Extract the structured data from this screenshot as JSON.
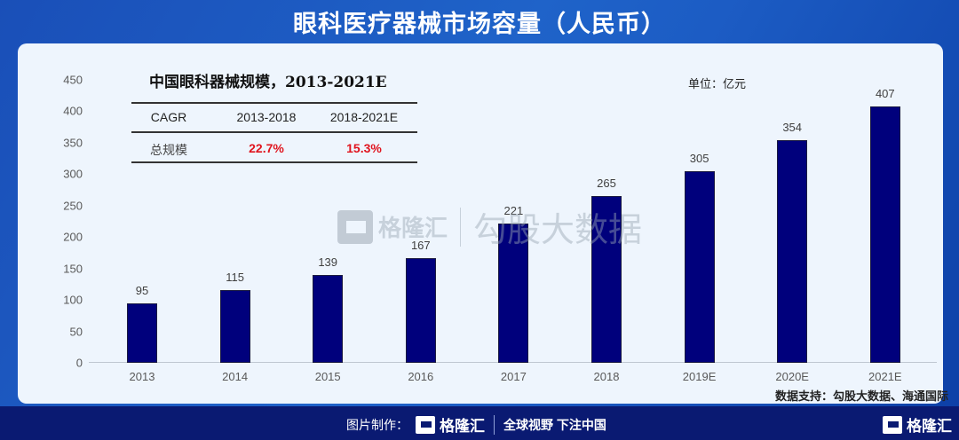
{
  "header": {
    "title": "眼科医疗器械市场容量（人民币）"
  },
  "table": {
    "title": "中国眼科器械规模，2013-2021E",
    "headers": [
      "CAGR",
      "2013-2018",
      "2018-2021E"
    ],
    "row": {
      "label": "总规模",
      "values": [
        "22.7%",
        "15.3%"
      ]
    }
  },
  "unit_label": "单位：亿元",
  "source_label": "数据支持：勾股大数据、海通国际",
  "watermark": {
    "brand": "格隆汇",
    "text": "勾股大数据"
  },
  "footer": {
    "prefix": "图片制作：",
    "brand": "格隆汇",
    "slogan": "全球视野 下注中国",
    "right_brand": "格隆汇"
  },
  "colors": {
    "bar": "#00007c",
    "highlight": "#e0141e",
    "header_bg": "#1f63c9",
    "footer_bg": "#0a1a72"
  },
  "chart_data": {
    "type": "bar",
    "title": "中国眼科器械规模，2013-2021E",
    "xlabel": "",
    "ylabel": "单位：亿元",
    "ylim": [
      0,
      450
    ],
    "yticks": [
      "0",
      "50",
      "100",
      "150",
      "200",
      "250",
      "300",
      "350",
      "400",
      "450"
    ],
    "categories": [
      "2013",
      "2014",
      "2015",
      "2016",
      "2017",
      "2018",
      "2019E",
      "2020E",
      "2021E"
    ],
    "values": [
      95,
      115,
      139,
      167,
      221,
      265,
      305,
      354,
      407
    ],
    "value_labels": [
      "95",
      "115",
      "139",
      "167",
      "221",
      "265",
      "305",
      "354",
      "407"
    ],
    "grid": false,
    "legend": null
  }
}
